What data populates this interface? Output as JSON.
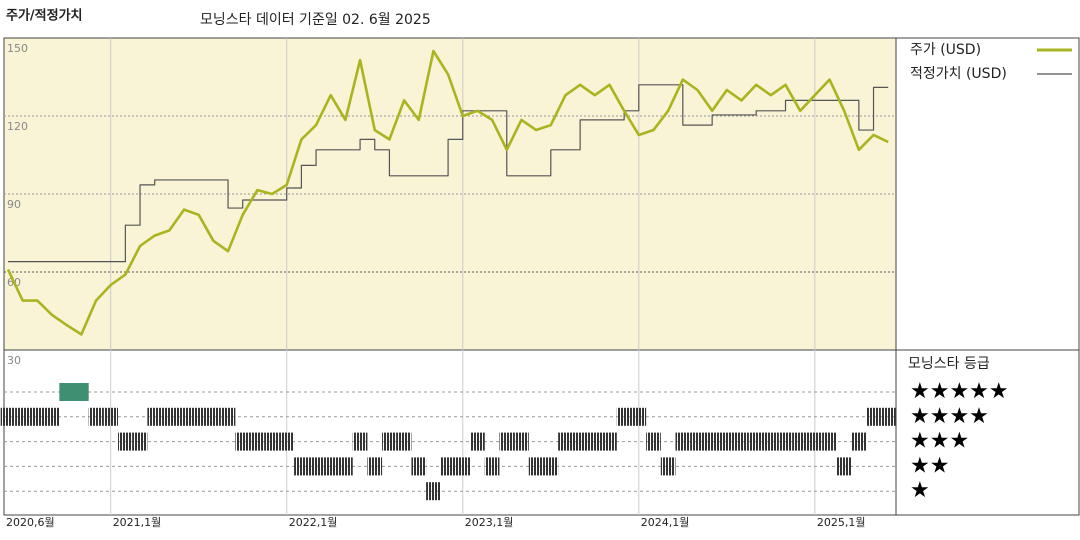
{
  "chart_data": {
    "type": "line",
    "title": "주가/적정가치",
    "subtitle": "모닝스타 데이터 기준일 02. 6월 2025",
    "x": [
      "2020-06",
      "2020-07",
      "2020-08",
      "2020-09",
      "2020-10",
      "2020-11",
      "2020-12",
      "2021-01",
      "2021-02",
      "2021-03",
      "2021-04",
      "2021-05",
      "2021-06",
      "2021-07",
      "2021-08",
      "2021-09",
      "2021-10",
      "2021-11",
      "2021-12",
      "2022-01",
      "2022-02",
      "2022-03",
      "2022-04",
      "2022-05",
      "2022-06",
      "2022-07",
      "2022-08",
      "2022-09",
      "2022-10",
      "2022-11",
      "2022-12",
      "2023-01",
      "2023-02",
      "2023-03",
      "2023-04",
      "2023-05",
      "2023-06",
      "2023-07",
      "2023-08",
      "2023-09",
      "2023-10",
      "2023-11",
      "2023-12",
      "2024-01",
      "2024-02",
      "2024-03",
      "2024-04",
      "2024-05",
      "2024-06",
      "2024-07",
      "2024-08",
      "2024-09",
      "2024-10",
      "2024-11",
      "2024-12",
      "2025-01",
      "2025-02",
      "2025-03",
      "2025-04",
      "2025-05",
      "2025-06"
    ],
    "series": [
      {
        "name": "주가 (USD)",
        "color": "#aab420",
        "values": [
          61,
          49,
          49,
          43.5,
          39.6,
          36,
          49,
          55,
          59,
          70,
          74,
          76,
          84,
          82,
          72,
          68,
          82,
          91.5,
          90,
          93.5,
          111,
          116.5,
          128,
          118.5,
          141.5,
          114.6,
          111,
          126,
          118.5,
          145,
          136,
          120,
          122,
          118.5,
          107,
          118.5,
          114.6,
          116.5,
          128,
          132,
          128,
          132,
          122,
          112.7,
          114.6,
          122,
          134,
          130,
          122,
          130,
          126,
          132,
          128,
          132,
          122,
          128,
          134,
          122,
          107,
          112.7,
          110
        ]
      },
      {
        "name": "적정가치 (USD)",
        "color": "#555555",
        "step": true,
        "values": [
          64,
          64,
          64,
          64,
          64,
          64,
          64,
          64,
          78,
          93.5,
          95.4,
          95.4,
          95.4,
          95.4,
          95.4,
          84.6,
          87.7,
          87.7,
          87.7,
          92.3,
          101,
          107,
          107,
          107,
          111,
          107,
          97,
          97,
          97,
          97,
          111,
          122,
          122,
          122,
          97,
          97,
          97,
          107,
          107,
          118.5,
          118.5,
          118.5,
          122,
          132,
          132,
          132,
          116.5,
          116.5,
          120.4,
          120.4,
          120.4,
          122,
          122,
          126,
          126,
          126,
          126,
          126,
          114.6,
          131,
          131
        ]
      }
    ],
    "ylim": [
      30,
      150
    ],
    "yticks": [
      30,
      60,
      90,
      120,
      150
    ],
    "grid": true,
    "xticks": [
      {
        "value": "2020-06",
        "label": "2020,6월"
      },
      {
        "value": "2021-01",
        "label": "2021,1월"
      },
      {
        "value": "2022-01",
        "label": "2022,1월"
      },
      {
        "value": "2023-01",
        "label": "2023,1월"
      },
      {
        "value": "2024-01",
        "label": "2024,1월"
      },
      {
        "value": "2025-01",
        "label": "2025,1월"
      }
    ],
    "rating_title": "모닝스타 등급",
    "rating_labels": [
      "★★★★★",
      "★★★★",
      "★★★",
      "★★",
      "★"
    ],
    "ratings": [
      4,
      4,
      4,
      4,
      5,
      5,
      4,
      4,
      3,
      3,
      4,
      4,
      4,
      4,
      4,
      4,
      3,
      3,
      3,
      3,
      2,
      2,
      2,
      2,
      3,
      2,
      3,
      3,
      2,
      1,
      2,
      2,
      3,
      2,
      3,
      3,
      2,
      2,
      3,
      3,
      3,
      3,
      4,
      4,
      3,
      2,
      3,
      3,
      3,
      3,
      3,
      3,
      3,
      3,
      3,
      3,
      3,
      2,
      3,
      4,
      4
    ],
    "rating_colors": {
      "5": "#3f8f72",
      "other": "#333333"
    }
  }
}
